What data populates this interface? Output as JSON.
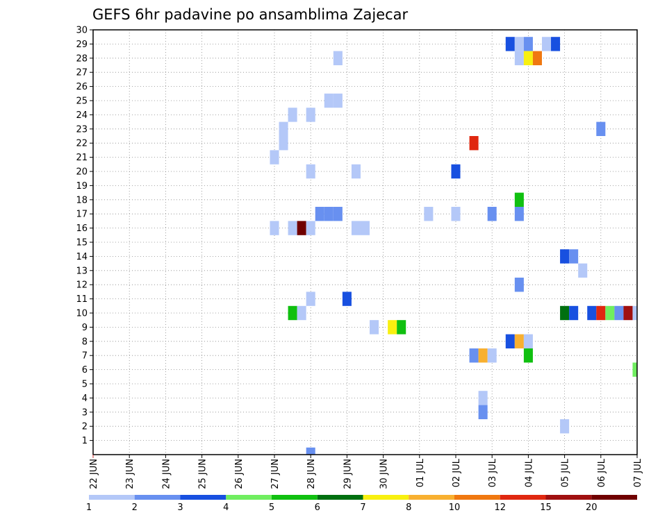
{
  "chart_data": {
    "type": "heatmap",
    "title": "GEFS 6hr padavine po ansamblima Zajecar",
    "xlabel": "",
    "ylabel": "",
    "x_ticks": [
      "22 JUN",
      "23 JUN",
      "24 JUN",
      "25 JUN",
      "26 JUN",
      "27 JUN",
      "28 JUN",
      "29 JUN",
      "30 JUN",
      "01 JUL",
      "02 JUL",
      "03 JUL",
      "04 JUL",
      "05 JUL",
      "06 JUL",
      "07 JUL"
    ],
    "y_ticks": [
      "1",
      "2",
      "3",
      "4",
      "5",
      "6",
      "7",
      "8",
      "9",
      "10",
      "11",
      "12",
      "13",
      "14",
      "15",
      "16",
      "17",
      "18",
      "19",
      "20",
      "21",
      "22",
      "23",
      "24",
      "25",
      "26",
      "27",
      "28",
      "29",
      "30"
    ],
    "xlim": [
      0,
      60
    ],
    "ylim": [
      0,
      30
    ],
    "grid": true,
    "x_unit": "6-hour step from 22 JUN 00",
    "colorbar": {
      "labels": [
        "1",
        "2",
        "3",
        "4",
        "5",
        "6",
        "7",
        "8",
        "10",
        "12",
        "15",
        "20"
      ],
      "colors": [
        "#b4c8f8",
        "#6890f0",
        "#1850e0",
        "#70ee60",
        "#10c010",
        "#007010",
        "#f8f010",
        "#f8b030",
        "#f07810",
        "#e02810",
        "#a01010",
        "#700000"
      ]
    },
    "cells": [
      [
        46,
        29,
        2
      ],
      [
        47,
        29,
        0
      ],
      [
        48,
        29,
        1
      ],
      [
        50,
        29,
        0
      ],
      [
        51,
        29,
        2
      ],
      [
        27,
        28,
        0
      ],
      [
        47,
        28,
        0
      ],
      [
        48,
        28,
        6
      ],
      [
        49,
        28,
        8
      ],
      [
        26,
        25,
        0
      ],
      [
        27,
        25,
        0
      ],
      [
        22,
        24,
        0
      ],
      [
        24,
        24,
        0
      ],
      [
        21,
        23,
        0
      ],
      [
        56,
        23,
        1
      ],
      [
        21,
        22,
        0
      ],
      [
        42,
        22,
        9
      ],
      [
        20,
        21,
        0
      ],
      [
        24,
        20,
        0
      ],
      [
        29,
        20,
        0
      ],
      [
        40,
        20,
        2
      ],
      [
        47,
        18,
        4
      ],
      [
        25,
        17,
        1
      ],
      [
        26,
        17,
        1
      ],
      [
        27,
        17,
        1
      ],
      [
        37,
        17,
        0
      ],
      [
        40,
        17,
        0
      ],
      [
        44,
        17,
        1
      ],
      [
        47,
        17,
        1
      ],
      [
        20,
        16,
        0
      ],
      [
        22,
        16,
        0
      ],
      [
        23,
        16,
        11
      ],
      [
        24,
        16,
        0
      ],
      [
        29,
        16,
        0
      ],
      [
        30,
        16,
        0
      ],
      [
        52,
        14,
        2
      ],
      [
        53,
        14,
        1
      ],
      [
        54,
        13,
        0
      ],
      [
        47,
        12,
        1
      ],
      [
        24,
        11,
        0
      ],
      [
        28,
        11,
        2
      ],
      [
        22,
        10,
        4
      ],
      [
        23,
        10,
        0
      ],
      [
        52,
        10,
        5
      ],
      [
        53,
        10,
        2
      ],
      [
        55,
        10,
        2
      ],
      [
        56,
        10,
        9
      ],
      [
        57,
        10,
        3
      ],
      [
        58,
        10,
        1
      ],
      [
        59,
        10,
        10
      ],
      [
        60,
        10,
        0
      ],
      [
        31,
        9,
        0
      ],
      [
        33,
        9,
        6
      ],
      [
        34,
        9,
        4
      ],
      [
        46,
        8,
        2
      ],
      [
        47,
        8,
        7
      ],
      [
        48,
        8,
        0
      ],
      [
        42,
        7,
        1
      ],
      [
        43,
        7,
        7
      ],
      [
        44,
        7,
        0
      ],
      [
        48,
        7,
        4
      ],
      [
        60,
        6,
        3
      ],
      [
        43,
        4,
        0
      ],
      [
        43,
        3,
        1
      ],
      [
        52,
        2,
        0
      ],
      [
        24,
        0,
        1
      ],
      [
        30,
        -1,
        2
      ],
      [
        31,
        -1,
        3
      ]
    ]
  }
}
